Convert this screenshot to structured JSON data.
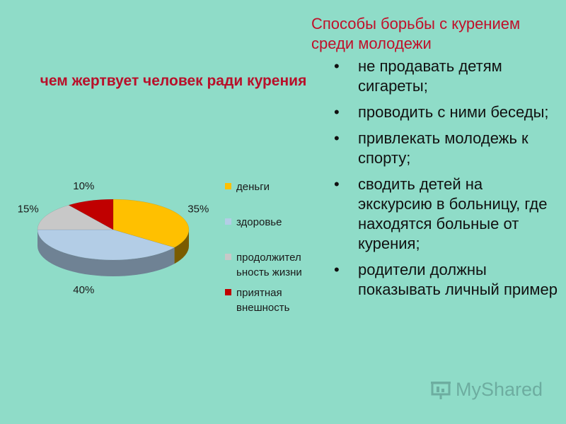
{
  "slide_title": "Способы борьбы с курением среди молодежи",
  "bullets": [
    "не продавать детям сигареты;",
    "проводить с ними беседы;",
    "привлекать молодежь к спорту;",
    "сводить детей на экскурсию в больницу, где находятся больные от курения;",
    "родители должны показывать личный пример"
  ],
  "bullet_mark": "•",
  "logo_text": "MyShared",
  "chart_data": {
    "type": "pie",
    "title": "чем жертвует человек ради курения",
    "categories": [
      "деньги",
      "здоровье",
      "продолжительность жизни",
      "приятная внешность"
    ],
    "legend_labels": [
      "деньги",
      "здоровье",
      "продолжител ьность жизни",
      "приятная внешность"
    ],
    "values": [
      35,
      40,
      15,
      10
    ],
    "data_labels": [
      "35%",
      "40%",
      "15%",
      "10%"
    ],
    "colors": [
      "#ffc000",
      "#b3cde6",
      "#c8c8c8",
      "#c00000"
    ],
    "side_colors": [
      "#7a5c00",
      "#6f8294",
      "#8a8a8a",
      "#6a0000"
    ],
    "legend_position": "right",
    "style": "3d"
  }
}
